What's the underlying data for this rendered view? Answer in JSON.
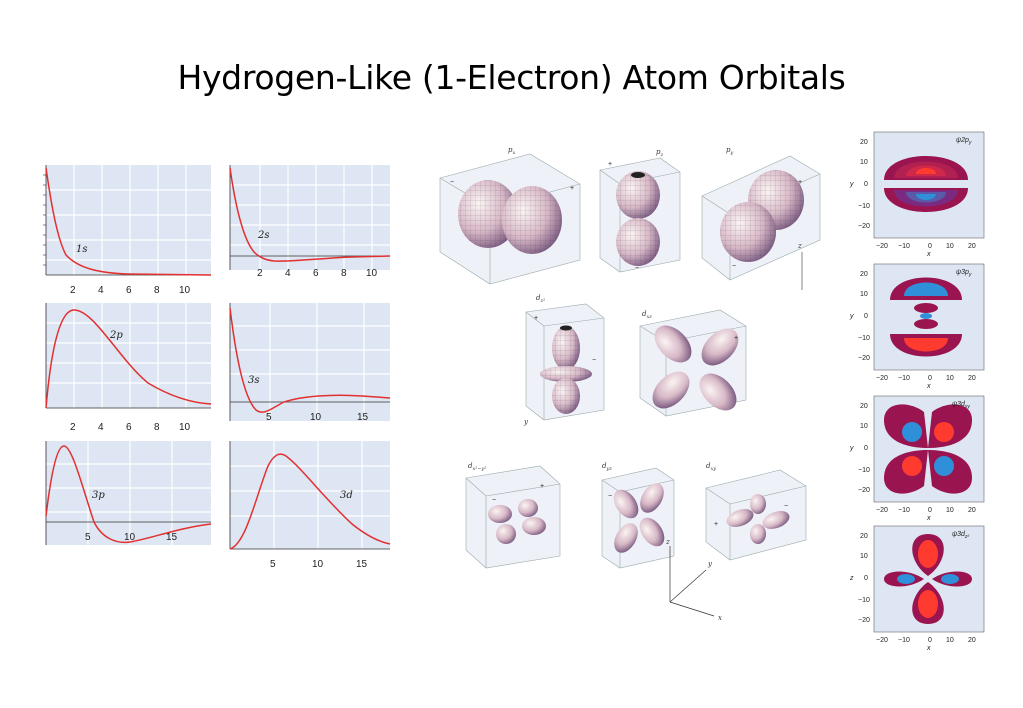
{
  "title": "Hydrogen-Like (1-Electron) Atom Orbitals",
  "colors": {
    "curve": "#e23030",
    "plot_bg": "#dde6f2",
    "grid": "#ffffff",
    "contour_outer": "#9a1450",
    "contour_blue": "#2f8fd8",
    "contour_red": "#ff3b30"
  },
  "radial_plots": [
    {
      "label": "1s",
      "x_ticks": [
        "2",
        "4",
        "6",
        "8",
        "10"
      ]
    },
    {
      "label": "2s",
      "x_ticks": [
        "2",
        "4",
        "6",
        "8",
        "10"
      ]
    },
    {
      "label": "2p",
      "x_ticks": [
        "2",
        "4",
        "6",
        "8",
        "10"
      ]
    },
    {
      "label": "3s",
      "x_ticks": [
        "5",
        "10",
        "15"
      ]
    },
    {
      "label": "3p",
      "x_ticks": [
        "5",
        "10",
        "15"
      ]
    },
    {
      "label": "3d",
      "x_ticks": [
        "5",
        "10",
        "15"
      ]
    }
  ],
  "orbitals_3d": {
    "p_labels": [
      "p",
      "p",
      "p"
    ],
    "p_subs": [
      "x",
      "z",
      "y"
    ],
    "d_labels": [
      "d",
      "d",
      "d",
      "d",
      "d"
    ],
    "d_subs": [
      "z²",
      "xz",
      "x²−y²",
      "yz",
      "xy"
    ],
    "axes": {
      "x": "x",
      "y": "y",
      "z": "z"
    },
    "signs": {
      "plus": "+",
      "minus": "−"
    }
  },
  "contour_plots": [
    {
      "label": "ψ2p",
      "sub": "y",
      "ylabel": "y",
      "xlabel": "x"
    },
    {
      "label": "ψ3p",
      "sub": "y",
      "ylabel": "y",
      "xlabel": "x"
    },
    {
      "label": "ψ3d",
      "sub": "xy",
      "ylabel": "y",
      "xlabel": "x"
    },
    {
      "label": "ψ3d",
      "sub": "z²",
      "ylabel": "z",
      "xlabel": "x"
    }
  ],
  "contour_ticks": [
    "20",
    "10",
    "0",
    "−10",
    "−20"
  ],
  "contour_xticks": [
    "−20",
    "−10",
    "0",
    "10",
    "20"
  ]
}
